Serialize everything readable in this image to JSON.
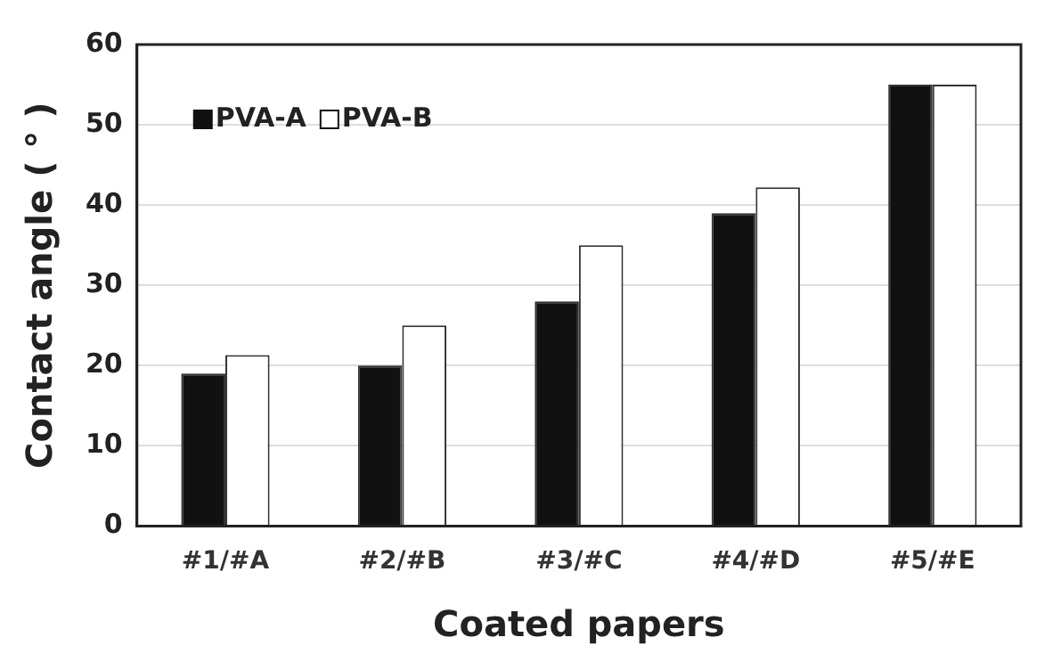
{
  "chart_data": {
    "type": "bar",
    "xlabel": "Coated papers",
    "ylabel": "Contact angle ( ° )",
    "categories": [
      "#1/#A",
      "#2/#B",
      "#3/#C",
      "#4/#D",
      "#5/#E"
    ],
    "series": [
      {
        "name": "PVA-A",
        "color": "#111111",
        "values": [
          19,
          20,
          28,
          39,
          55
        ]
      },
      {
        "name": "PVA-B",
        "color": "#ffffff",
        "values": [
          21.3,
          25,
          35,
          42.2,
          55
        ]
      }
    ],
    "ylim": [
      0,
      60
    ],
    "yticks": [
      0,
      10,
      20,
      30,
      40,
      50,
      60
    ],
    "grid": "y",
    "legend": "top left"
  }
}
